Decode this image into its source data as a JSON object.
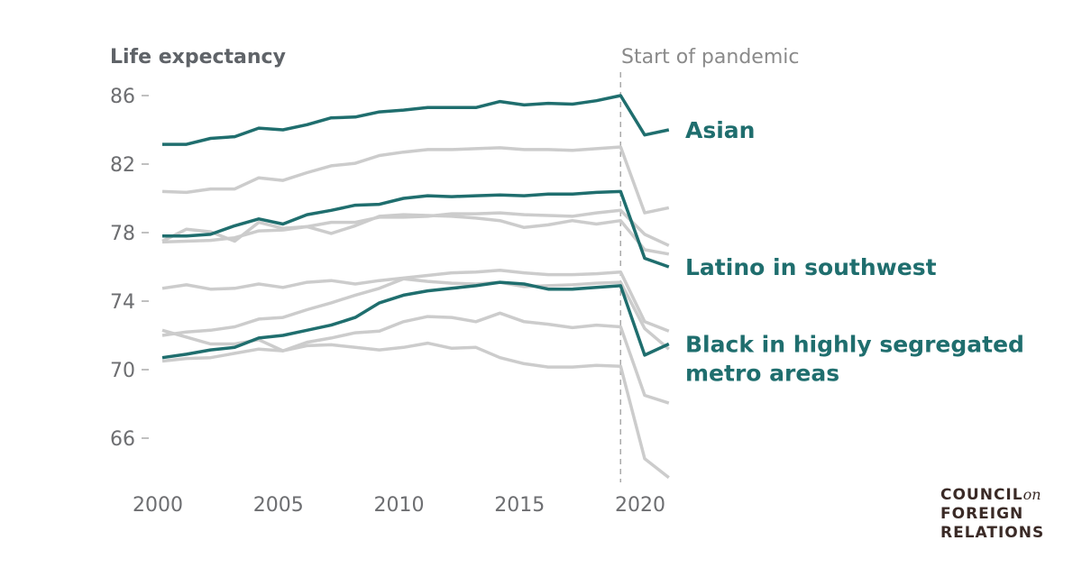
{
  "chart_data": {
    "type": "line",
    "ylabel": "Life expectancy",
    "annotation": "Start of pandemic",
    "annotation_x": 2019,
    "x": [
      2000,
      2001,
      2002,
      2003,
      2004,
      2005,
      2006,
      2007,
      2008,
      2009,
      2010,
      2011,
      2012,
      2013,
      2014,
      2015,
      2016,
      2017,
      2018,
      2019,
      2020,
      2021
    ],
    "xticks": [
      2000,
      2005,
      2010,
      2015,
      2020
    ],
    "yticks": [
      66,
      70,
      74,
      78,
      82,
      86
    ],
    "ylim": [
      63.5,
      86.5
    ],
    "xlim": [
      2000,
      2021
    ],
    "grid": false,
    "colors": {
      "highlight": "#1f6e6e",
      "other": "#cccccc",
      "axis": "#6d6e71"
    },
    "series": [
      {
        "name": "",
        "highlight": false,
        "values": [
          80.4,
          80.35,
          80.55,
          80.55,
          81.2,
          81.05,
          81.5,
          81.9,
          82.05,
          82.5,
          82.7,
          82.85,
          82.85,
          82.9,
          82.95,
          82.85,
          82.85,
          82.8,
          82.9,
          83.0,
          79.15,
          79.45
        ]
      },
      {
        "name": "",
        "highlight": false,
        "values": [
          77.5,
          78.2,
          78.05,
          77.5,
          78.6,
          78.25,
          78.35,
          77.95,
          78.4,
          78.95,
          79.05,
          79.0,
          78.95,
          78.85,
          78.7,
          78.3,
          78.45,
          78.7,
          78.5,
          78.7,
          77.0,
          76.75
        ]
      },
      {
        "name": "",
        "highlight": false,
        "values": [
          77.45,
          77.5,
          77.55,
          77.7,
          78.1,
          78.15,
          78.35,
          78.6,
          78.6,
          78.9,
          78.9,
          78.95,
          79.1,
          79.1,
          79.15,
          79.05,
          79.0,
          78.95,
          79.15,
          79.3,
          77.9,
          77.25
        ]
      },
      {
        "name": "",
        "highlight": false,
        "values": [
          74.75,
          74.95,
          74.7,
          74.75,
          75.0,
          74.8,
          75.1,
          75.2,
          75.0,
          75.2,
          75.35,
          75.5,
          75.65,
          75.7,
          75.8,
          75.65,
          75.55,
          75.55,
          75.6,
          75.7,
          72.8,
          72.25
        ]
      },
      {
        "name": "",
        "highlight": false,
        "values": [
          72.0,
          72.2,
          72.3,
          72.5,
          72.95,
          73.05,
          73.5,
          73.9,
          74.35,
          74.75,
          75.3,
          75.15,
          75.05,
          75.0,
          75.1,
          74.85,
          74.9,
          74.95,
          75.05,
          75.1,
          72.4,
          71.2
        ]
      },
      {
        "name": "",
        "highlight": false,
        "values": [
          72.3,
          71.9,
          71.5,
          71.5,
          71.75,
          71.1,
          71.6,
          71.85,
          72.15,
          72.25,
          72.8,
          73.1,
          73.05,
          72.8,
          73.3,
          72.8,
          72.65,
          72.45,
          72.6,
          72.5,
          68.5,
          68.05
        ]
      },
      {
        "name": "",
        "highlight": false,
        "values": [
          70.5,
          70.65,
          70.7,
          70.95,
          71.2,
          71.1,
          71.4,
          71.45,
          71.3,
          71.15,
          71.3,
          71.55,
          71.25,
          71.3,
          70.7,
          70.35,
          70.15,
          70.15,
          70.25,
          70.2,
          64.8,
          63.7
        ]
      },
      {
        "name": "Asian",
        "highlight": true,
        "values": [
          83.15,
          83.15,
          83.5,
          83.6,
          84.1,
          84.0,
          84.3,
          84.7,
          84.75,
          85.05,
          85.15,
          85.3,
          85.3,
          85.3,
          85.65,
          85.45,
          85.55,
          85.5,
          85.7,
          86.0,
          83.7,
          84.0
        ]
      },
      {
        "name": "Latino in southwest",
        "highlight": true,
        "values": [
          77.8,
          77.8,
          77.9,
          78.4,
          78.8,
          78.5,
          79.05,
          79.3,
          79.6,
          79.65,
          80.0,
          80.15,
          80.1,
          80.15,
          80.2,
          80.15,
          80.25,
          80.25,
          80.35,
          80.4,
          76.5,
          76.0
        ]
      },
      {
        "name": "Black in highly segregated metro areas",
        "name_lines": [
          "Black in highly segregated",
          "metro areas"
        ],
        "highlight": true,
        "values": [
          70.7,
          70.9,
          71.15,
          71.3,
          71.85,
          72.0,
          72.3,
          72.6,
          73.05,
          73.9,
          74.35,
          74.6,
          74.75,
          74.9,
          75.1,
          75.0,
          74.7,
          74.7,
          74.8,
          74.9,
          70.85,
          71.5
        ]
      }
    ]
  },
  "logo": {
    "line1": "COUNCIL",
    "line1_suffix": "on",
    "line2": "FOREIGN",
    "line3": "RELATIONS"
  }
}
